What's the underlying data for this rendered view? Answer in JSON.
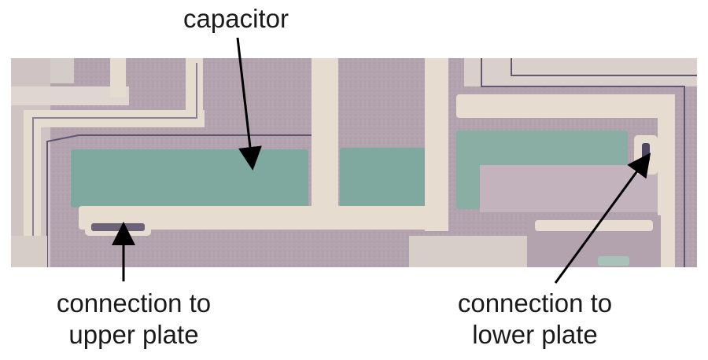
{
  "labels": {
    "capacitor": "capacitor",
    "upper_plate_line1": "connection to",
    "upper_plate_line2": "upper plate",
    "lower_plate_line1": "connection to",
    "lower_plate_line2": "lower plate"
  },
  "colors": {
    "die_purple": "#b3a3ae",
    "die_pale": "#dcd3cc",
    "capacitor_teal": "#7fa89e",
    "metal_cream": "#e6ddd0",
    "trace_dark": "#5e5673",
    "arrow": "#000000"
  }
}
